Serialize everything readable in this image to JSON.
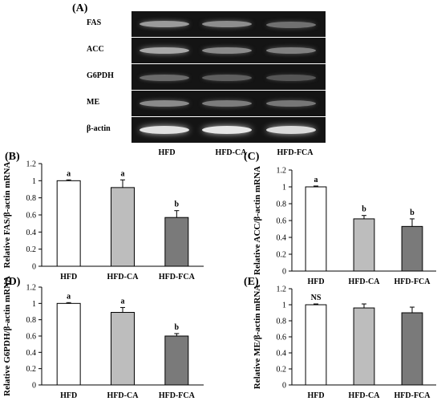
{
  "panel_labels": {
    "a": "(A)",
    "b": "(B)",
    "c": "(C)",
    "d": "(D)",
    "e": "(E)"
  },
  "gel": {
    "genes": [
      "FAS",
      "ACC",
      "G6PDH",
      "ME",
      "β-actin"
    ],
    "lanes": [
      "HFD",
      "HFD-CA",
      "HFD-FCA"
    ]
  },
  "colors": {
    "HFD": "#ffffff",
    "HFD-CA": "#bdbdbd",
    "HFD-FCA": "#7a7a7a"
  },
  "chart_data": [
    {
      "panel": "(B)",
      "type": "bar",
      "categories": [
        "HFD",
        "HFD-CA",
        "HFD-FCA"
      ],
      "values": [
        1.0,
        0.92,
        0.57
      ],
      "errors": [
        0.01,
        0.09,
        0.08
      ],
      "labels": [
        "a",
        "a",
        "b"
      ],
      "ylabel": "Relative FAS/β-actin mRNA",
      "ylim": [
        0,
        1.2
      ],
      "yticks": [
        "0",
        "0.2",
        "0.4",
        "0.6",
        "0.8",
        "1",
        "1.2"
      ]
    },
    {
      "panel": "(C)",
      "type": "bar",
      "categories": [
        "HFD",
        "HFD-CA",
        "HFD-FCA"
      ],
      "values": [
        1.0,
        0.62,
        0.53
      ],
      "errors": [
        0.01,
        0.04,
        0.09
      ],
      "labels": [
        "a",
        "b",
        "b"
      ],
      "ylabel": "Relative ACC/β-actin mRNA",
      "ylim": [
        0,
        1.2
      ],
      "yticks": [
        "0",
        "0.2",
        "0.4",
        "0.6",
        "0.8",
        "1",
        "1.2"
      ]
    },
    {
      "panel": "(D)",
      "type": "bar",
      "categories": [
        "HFD",
        "HFD-CA",
        "HFD-FCA"
      ],
      "values": [
        1.0,
        0.89,
        0.6
      ],
      "errors": [
        0.01,
        0.06,
        0.03
      ],
      "labels": [
        "a",
        "a",
        "b"
      ],
      "ylabel": "Relative G6PDH/β-actin mRNA",
      "ylim": [
        0,
        1.2
      ],
      "yticks": [
        "0",
        "0.2",
        "0.4",
        "0.6",
        "0.8",
        "1",
        "1.2"
      ]
    },
    {
      "panel": "(E)",
      "type": "bar",
      "categories": [
        "HFD",
        "HFD-CA",
        "HFD-FCA"
      ],
      "values": [
        1.0,
        0.96,
        0.9
      ],
      "errors": [
        0.01,
        0.05,
        0.07
      ],
      "labels": [
        "NS",
        "",
        ""
      ],
      "ylabel": "Relative ME/β-actin mRNA",
      "ylim": [
        0,
        1.2
      ],
      "yticks": [
        "0",
        "0.2",
        "0.4",
        "0.6",
        "0.8",
        "1",
        "1.2"
      ]
    }
  ]
}
